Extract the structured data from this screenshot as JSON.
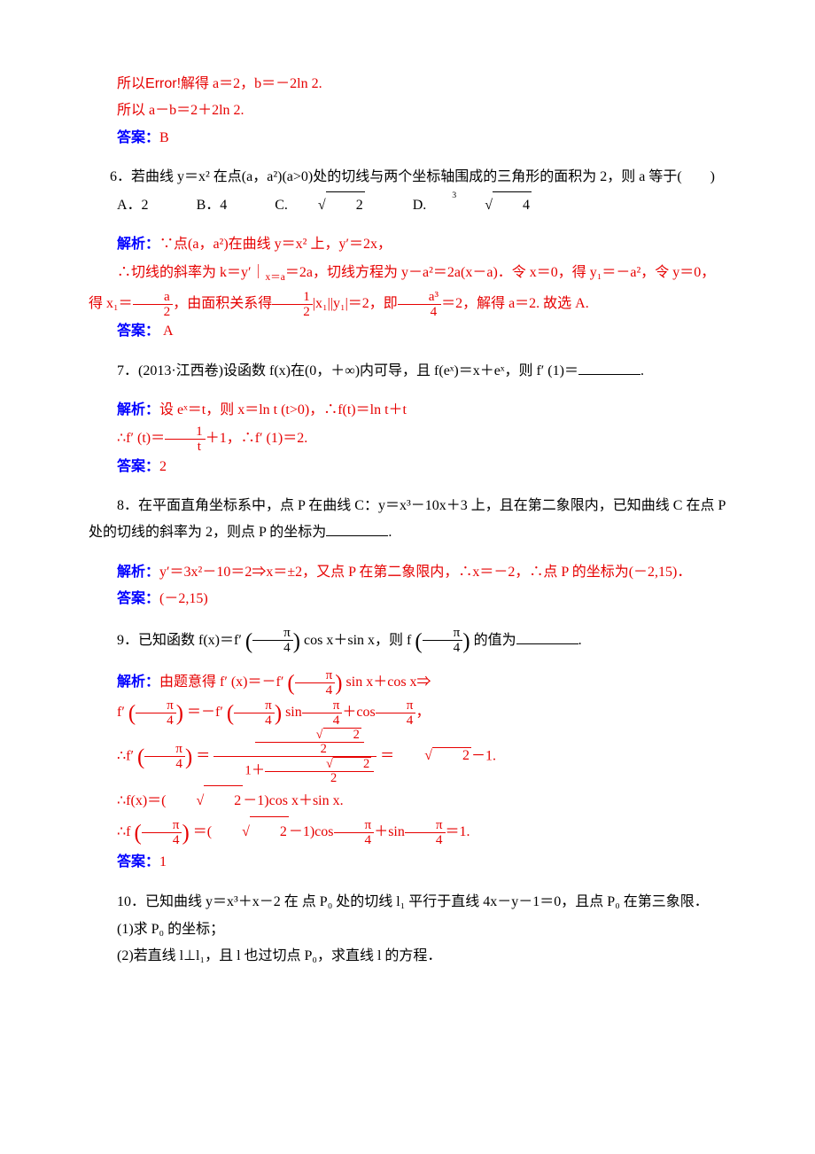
{
  "q5_tail": {
    "line1_pre": "所以",
    "line1_err": "Error!",
    "line1_post": "解得 a＝2，b＝－2ln 2.",
    "line2": "所以 a－b＝2＋2ln 2.",
    "ans_label": "答案：",
    "ans": "B"
  },
  "q6": {
    "stem": "6．若曲线 y＝x² 在点(a，a²)(a>0)处的切线与两个坐标轴围成的三角形的面积为 2，则 a 等于(　　)",
    "choiceA_label": "A．2",
    "choiceB_label": "B．4",
    "choiceC_label": "C.",
    "choiceD_label": "D.",
    "sol_label": "解析：",
    "sol1": "∵点(a，a²)在曲线 y＝x² 上，y′＝2x，",
    "sol2_a": "∴切线的斜率为 k＝y′｜",
    "sol2_sub": "x＝a",
    "sol2_b": "＝2a，切线方程为 y－a²＝2a(x－a)．令 x＝0，得 y₁＝－a²，令 y＝0，得 x₁＝",
    "sol2_c": "，由面积关系得",
    "sol2_d": "|x₁||y₁|＝2，即",
    "sol2_e": "＝2，解得 a＝2. 故选 A.",
    "frac_a_over_2": {
      "num": "a",
      "den": "2"
    },
    "frac_half": {
      "num": "1",
      "den": "2"
    },
    "frac_a3_4": {
      "num": "a³",
      "den": "4"
    },
    "ans_label": "答案：",
    "ans": " A"
  },
  "q7": {
    "stem_a": "7．(2013·江西卷)设函数 f(x)在(0，＋∞)内可导，且 f(eˣ)＝x＋eˣ，则 f′ (1)＝",
    "sol_label": "解析：",
    "sol1": "设 eˣ＝t，则 x＝ln t (t>0)，∴f(t)＝ln t＋t",
    "sol2_a": "∴f′ (t)＝",
    "sol2_b": "＋1，∴f′ (1)＝2.",
    "frac_1_t": {
      "num": "1",
      "den": "t"
    },
    "ans_label": "答案：",
    "ans": "2"
  },
  "q8": {
    "stem": "8．在平面直角坐标系中，点 P 在曲线 C：y＝x³－10x＋3 上，且在第二象限内，已知曲线 C 在点 P 处的切线的斜率为 2，则点 P 的坐标为",
    "sol_label": "解析：",
    "sol": "y′＝3x²－10＝2⇒x＝±2，又点 P 在第二象限内，∴x＝－2，∴点 P 的坐标为(－2,15)．",
    "ans_label": "答案：",
    "ans": "(－2,15)"
  },
  "q9": {
    "stem_a": "9．已知函数 f(x)＝f′",
    "stem_b": "cos x＋sin x，则 f",
    "stem_c": "的值为",
    "pi4": {
      "num": "π",
      "den": "4"
    },
    "sol_label": "解析：",
    "s1_a": "由题意得 f′ (x)＝－f′",
    "s1_b": "sin x＋cos x⇒",
    "s2_a": "f′",
    "s2_b": "＝－f′",
    "s2_c": "sin",
    "s2_d": "＋cos",
    "s2_e": "，",
    "s3_a": "∴f′",
    "s3_b": "＝",
    "s3_c": "＝",
    "s3_d": "－1.",
    "sqrt2": "2",
    "sqrt2_over2": {
      "num_sqrt": "2",
      "den": "2"
    },
    "one_plus_r2_2": {
      "top_num_sqrt": "2",
      "top_den": "2",
      "bottom_prefix": "1＋"
    },
    "s4_a": "∴f(x)＝(",
    "s4_b": "－1)cos x＋sin x.",
    "s5_a": "∴f",
    "s5_b": "＝(",
    "s5_c": "－1)cos",
    "s5_d": "＋sin",
    "s5_e": "＝1.",
    "ans_label": "答案：",
    "ans": "1"
  },
  "q10": {
    "stem": "10．已知曲线 y＝x³＋x－2 在 点 P₀ 处的切线 l₁ 平行于直线 4x－y－1＝0，且点 P₀ 在第三象限．",
    "part1": "(1)求 P₀ 的坐标；",
    "part2": "(2)若直线 l⊥l₁，且 l 也过切点 P₀，求直线 l 的方程．"
  }
}
